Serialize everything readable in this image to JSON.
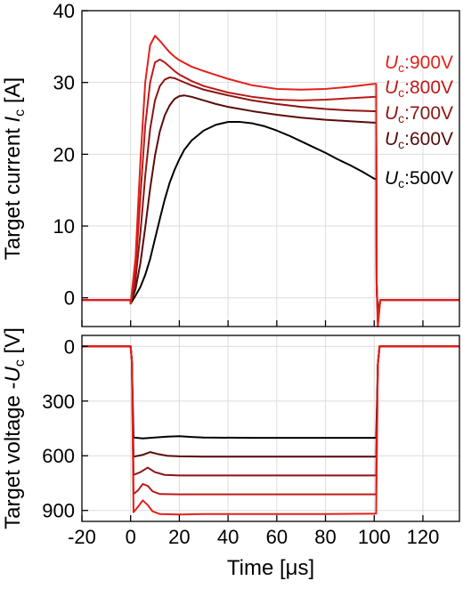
{
  "chart_data": [
    {
      "type": "line",
      "ylabel": "Target current I_c [A]",
      "ylabel_parts": {
        "main": "Target current ",
        "sym": "I",
        "sub": "c",
        "unit": " [A]"
      },
      "xlim": [
        -20,
        135
      ],
      "ylim": [
        -4,
        40
      ],
      "yticks": [
        0,
        10,
        20,
        30,
        40
      ],
      "grid": true,
      "series": [
        {
          "name": "Uc:500V",
          "label": {
            "sym": "U",
            "sub": "c",
            "text": ":500V"
          },
          "color": "#000000",
          "points": [
            [
              -20,
              -0.3
            ],
            [
              0,
              -0.3
            ],
            [
              0,
              -0.8
            ],
            [
              2,
              0.3
            ],
            [
              4,
              1.5
            ],
            [
              6,
              3.2
            ],
            [
              8,
              5.4
            ],
            [
              10,
              8.2
            ],
            [
              12,
              11.0
            ],
            [
              14,
              13.7
            ],
            [
              16,
              16.0
            ],
            [
              18,
              17.8
            ],
            [
              20,
              19.3
            ],
            [
              22,
              20.6
            ],
            [
              25,
              21.9
            ],
            [
              30,
              23.3
            ],
            [
              35,
              24.1
            ],
            [
              40,
              24.5
            ],
            [
              45,
              24.5
            ],
            [
              50,
              24.3
            ],
            [
              55,
              23.9
            ],
            [
              60,
              23.3
            ],
            [
              65,
              22.6
            ],
            [
              70,
              21.8
            ],
            [
              75,
              21.0
            ],
            [
              80,
              20.2
            ],
            [
              85,
              19.3
            ],
            [
              90,
              18.5
            ],
            [
              95,
              17.6
            ],
            [
              100,
              16.6
            ],
            [
              100.8,
              16.5
            ],
            [
              101,
              1.0
            ],
            [
              101.5,
              -2.0
            ],
            [
              102.5,
              -0.3
            ],
            [
              135,
              -0.3
            ]
          ]
        },
        {
          "name": "Uc:600V",
          "label": {
            "sym": "U",
            "sub": "c",
            "text": ":600V"
          },
          "color": "#5a0b0b",
          "points": [
            [
              -20,
              -0.3
            ],
            [
              0,
              -0.3
            ],
            [
              0,
              -0.8
            ],
            [
              2,
              1.2
            ],
            [
              4,
              4.8
            ],
            [
              6,
              9.8
            ],
            [
              8,
              15.2
            ],
            [
              10,
              19.8
            ],
            [
              12,
              23.2
            ],
            [
              14,
              25.4
            ],
            [
              16,
              26.8
            ],
            [
              18,
              27.7
            ],
            [
              20,
              28.1
            ],
            [
              22,
              28.2
            ],
            [
              25,
              28.0
            ],
            [
              30,
              27.5
            ],
            [
              35,
              27.0
            ],
            [
              40,
              26.6
            ],
            [
              50,
              26.0
            ],
            [
              60,
              25.5
            ],
            [
              70,
              25.1
            ],
            [
              80,
              24.8
            ],
            [
              90,
              24.6
            ],
            [
              100,
              24.4
            ],
            [
              100.8,
              24.4
            ],
            [
              101,
              2.0
            ],
            [
              101.5,
              -2.5
            ],
            [
              102.5,
              -0.3
            ],
            [
              135,
              -0.3
            ]
          ]
        },
        {
          "name": "Uc:700V",
          "label": {
            "sym": "U",
            "sub": "c",
            "text": ":700V"
          },
          "color": "#8c1414",
          "points": [
            [
              -20,
              -0.3
            ],
            [
              0,
              -0.3
            ],
            [
              0,
              -0.8
            ],
            [
              2,
              2.5
            ],
            [
              4,
              9.0
            ],
            [
              6,
              17.0
            ],
            [
              8,
              23.5
            ],
            [
              10,
              27.5
            ],
            [
              12,
              29.5
            ],
            [
              14,
              30.4
            ],
            [
              16,
              30.7
            ],
            [
              18,
              30.6
            ],
            [
              20,
              30.3
            ],
            [
              25,
              29.6
            ],
            [
              30,
              29.0
            ],
            [
              40,
              28.2
            ],
            [
              50,
              27.5
            ],
            [
              60,
              27.0
            ],
            [
              70,
              26.6
            ],
            [
              80,
              26.3
            ],
            [
              90,
              26.1
            ],
            [
              100,
              26.0
            ],
            [
              100.8,
              26.0
            ],
            [
              101,
              2.0
            ],
            [
              101.5,
              -3.0
            ],
            [
              102.5,
              -0.3
            ],
            [
              135,
              -0.3
            ]
          ]
        },
        {
          "name": "Uc:800V",
          "label": {
            "sym": "U",
            "sub": "c",
            "text": ":800V"
          },
          "color": "#bb1a1a",
          "points": [
            [
              -20,
              -0.3
            ],
            [
              0,
              -0.3
            ],
            [
              0,
              -0.8
            ],
            [
              2,
              4.0
            ],
            [
              4,
              14.0
            ],
            [
              6,
              24.0
            ],
            [
              8,
              30.0
            ],
            [
              10,
              32.8
            ],
            [
              12,
              33.2
            ],
            [
              14,
              32.8
            ],
            [
              16,
              32.2
            ],
            [
              18,
              31.6
            ],
            [
              20,
              31.1
            ],
            [
              25,
              30.2
            ],
            [
              30,
              29.5
            ],
            [
              40,
              28.6
            ],
            [
              50,
              28.0
            ],
            [
              60,
              27.6
            ],
            [
              70,
              27.5
            ],
            [
              80,
              27.6
            ],
            [
              90,
              27.8
            ],
            [
              100,
              28.0
            ],
            [
              100.8,
              28.0
            ],
            [
              101,
              2.0
            ],
            [
              101.5,
              -3.5
            ],
            [
              102.5,
              -0.3
            ],
            [
              135,
              -0.3
            ]
          ]
        },
        {
          "name": "Uc:900V",
          "label": {
            "sym": "U",
            "sub": "c",
            "text": ":900V"
          },
          "color": "#e3201b",
          "points": [
            [
              -20,
              -0.3
            ],
            [
              0,
              -0.3
            ],
            [
              0,
              -0.8
            ],
            [
              2,
              5.5
            ],
            [
              4,
              19.0
            ],
            [
              6,
              30.0
            ],
            [
              8,
              35.2
            ],
            [
              10,
              36.5
            ],
            [
              12,
              35.8
            ],
            [
              14,
              35.0
            ],
            [
              16,
              34.2
            ],
            [
              18,
              33.6
            ],
            [
              20,
              33.1
            ],
            [
              25,
              32.2
            ],
            [
              30,
              31.6
            ],
            [
              40,
              30.5
            ],
            [
              50,
              29.6
            ],
            [
              60,
              29.1
            ],
            [
              70,
              29.0
            ],
            [
              80,
              29.1
            ],
            [
              90,
              29.4
            ],
            [
              100,
              29.8
            ],
            [
              100.8,
              29.8
            ],
            [
              101,
              2.0
            ],
            [
              101.5,
              -4.0
            ],
            [
              102.5,
              -0.3
            ],
            [
              135,
              -0.3
            ]
          ]
        }
      ]
    },
    {
      "type": "line",
      "xlabel": "Time [μs]",
      "ylabel": "Target voltage -U_c [V]",
      "ylabel_parts": {
        "main": "Target voltage -",
        "sym": "U",
        "sub": "c",
        "unit": " [V]"
      },
      "xlim": [
        -20,
        135
      ],
      "xticks": [
        -20,
        0,
        20,
        40,
        60,
        80,
        100,
        120
      ],
      "ylim": [
        -60,
        960
      ],
      "yticks": [
        0,
        300,
        600,
        900
      ],
      "y_inverted": true,
      "grid": true,
      "series": [
        {
          "name": "500V",
          "color": "#000000",
          "points": [
            [
              -20,
              0
            ],
            [
              0,
              0
            ],
            [
              0.5,
              80
            ],
            [
              1.2,
              500
            ],
            [
              5,
              505
            ],
            [
              10,
              500
            ],
            [
              15,
              495
            ],
            [
              20,
              493
            ],
            [
              25,
              497
            ],
            [
              30,
              500
            ],
            [
              50,
              502
            ],
            [
              80,
              502
            ],
            [
              100,
              502
            ],
            [
              100.8,
              502
            ],
            [
              101.5,
              100
            ],
            [
              102.2,
              0
            ],
            [
              135,
              0
            ]
          ]
        },
        {
          "name": "600V",
          "color": "#5a0b0b",
          "points": [
            [
              -20,
              0
            ],
            [
              0,
              0
            ],
            [
              0.5,
              80
            ],
            [
              1.2,
              605
            ],
            [
              5,
              595
            ],
            [
              8,
              580
            ],
            [
              11,
              590
            ],
            [
              15,
              600
            ],
            [
              20,
              603
            ],
            [
              30,
              605
            ],
            [
              50,
              605
            ],
            [
              80,
              605
            ],
            [
              100,
              605
            ],
            [
              100.8,
              605
            ],
            [
              101.5,
              100
            ],
            [
              102.2,
              0
            ],
            [
              135,
              0
            ]
          ]
        },
        {
          "name": "700V",
          "color": "#8c1414",
          "points": [
            [
              -20,
              0
            ],
            [
              0,
              0
            ],
            [
              0.5,
              80
            ],
            [
              1.2,
              705
            ],
            [
              4,
              690
            ],
            [
              7,
              665
            ],
            [
              10,
              690
            ],
            [
              14,
              705
            ],
            [
              20,
              708
            ],
            [
              30,
              708
            ],
            [
              50,
              708
            ],
            [
              80,
              708
            ],
            [
              100,
              708
            ],
            [
              100.8,
              708
            ],
            [
              101.5,
              100
            ],
            [
              102.2,
              0
            ],
            [
              135,
              0
            ]
          ]
        },
        {
          "name": "800V",
          "color": "#bb1a1a",
          "points": [
            [
              -20,
              0
            ],
            [
              0,
              0
            ],
            [
              0.5,
              80
            ],
            [
              1.2,
              810
            ],
            [
              3,
              790
            ],
            [
              5,
              755
            ],
            [
              7,
              765
            ],
            [
              9,
              795
            ],
            [
              12,
              810
            ],
            [
              20,
              812
            ],
            [
              30,
              812
            ],
            [
              50,
              812
            ],
            [
              80,
              812
            ],
            [
              100,
              812
            ],
            [
              100.8,
              812
            ],
            [
              101.5,
              100
            ],
            [
              102.2,
              0
            ],
            [
              135,
              0
            ]
          ]
        },
        {
          "name": "900V",
          "color": "#e3201b",
          "points": [
            [
              -20,
              0
            ],
            [
              0,
              0
            ],
            [
              0.5,
              80
            ],
            [
              1.2,
              910
            ],
            [
              3,
              880
            ],
            [
              5,
              845
            ],
            [
              7,
              870
            ],
            [
              9,
              905
            ],
            [
              12,
              920
            ],
            [
              20,
              922
            ],
            [
              30,
              920
            ],
            [
              50,
              920
            ],
            [
              80,
              920
            ],
            [
              100,
              918
            ],
            [
              100.8,
              918
            ],
            [
              101.5,
              100
            ],
            [
              102.2,
              0
            ],
            [
              135,
              0
            ]
          ]
        }
      ]
    }
  ]
}
